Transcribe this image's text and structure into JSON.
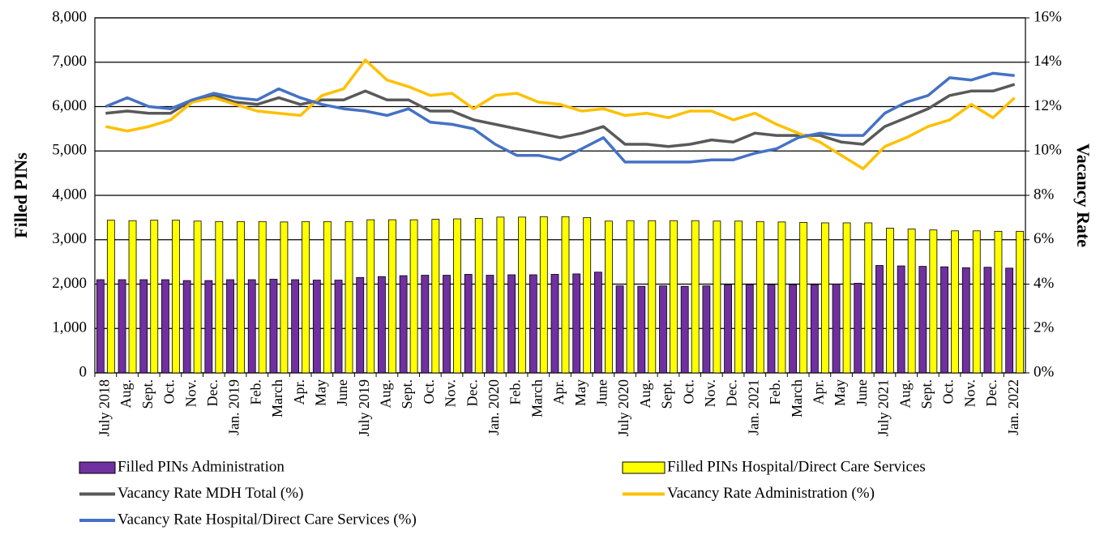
{
  "chart_data": {
    "type": "bar",
    "y_label": "Filled PINs",
    "y2_label": "Vacancy Rate",
    "categories": [
      "July 2018",
      "Aug.",
      "Sept.",
      "Oct.",
      "Nov.",
      "Dec.",
      "Jan. 2019",
      "Feb.",
      "March",
      "Apr.",
      "May",
      "June",
      "July 2019",
      "Aug.",
      "Sept.",
      "Oct.",
      "Nov.",
      "Dec.",
      "Jan. 2020",
      "Feb.",
      "March",
      "Apr.",
      "May",
      "June",
      "July 2020",
      "Aug.",
      "Sept.",
      "Oct.",
      "Nov.",
      "Dec.",
      "Jan. 2021",
      "Feb.",
      "March",
      "Apr.",
      "May",
      "June",
      "July 2021",
      "Aug.",
      "Sept.",
      "Oct.",
      "Nov.",
      "Dec.",
      "Jan. 2022"
    ],
    "series": [
      {
        "name": "Filled PINs Administration",
        "type": "bar",
        "color": "#7030a0",
        "values": [
          2100,
          2100,
          2100,
          2100,
          2080,
          2080,
          2100,
          2100,
          2110,
          2100,
          2090,
          2090,
          2150,
          2170,
          2190,
          2200,
          2200,
          2220,
          2200,
          2210,
          2210,
          2220,
          2230,
          2270,
          1960,
          1950,
          1960,
          1950,
          1960,
          1980,
          1990,
          1990,
          1990,
          1990,
          2000,
          2020,
          2420,
          2410,
          2400,
          2390,
          2370,
          2380,
          2360
        ]
      },
      {
        "name": "Filled PINs Hospital/Direct Care Services",
        "type": "bar",
        "color": "#ffff00",
        "values": [
          3440,
          3430,
          3440,
          3440,
          3420,
          3410,
          3410,
          3410,
          3400,
          3410,
          3410,
          3410,
          3450,
          3450,
          3450,
          3460,
          3470,
          3480,
          3510,
          3510,
          3520,
          3520,
          3500,
          3420,
          3430,
          3430,
          3430,
          3430,
          3420,
          3420,
          3410,
          3400,
          3390,
          3380,
          3380,
          3380,
          3260,
          3240,
          3220,
          3200,
          3200,
          3190,
          3190
        ]
      },
      {
        "name": "Vacancy Rate MDH Total (%)",
        "type": "line",
        "axis": "y2",
        "color": "#595959",
        "values": [
          11.7,
          11.8,
          11.7,
          11.7,
          12.3,
          12.5,
          12.2,
          12.1,
          12.4,
          12.1,
          12.3,
          12.3,
          12.7,
          12.3,
          12.3,
          11.8,
          11.8,
          11.4,
          11.2,
          11.0,
          10.8,
          10.6,
          10.8,
          11.1,
          10.3,
          10.3,
          10.2,
          10.3,
          10.5,
          10.4,
          10.8,
          10.7,
          10.7,
          10.7,
          10.4,
          10.3,
          11.1,
          11.5,
          11.9,
          12.5,
          12.7,
          12.7,
          13.0
        ]
      },
      {
        "name": "Vacancy Rate Administration (%)",
        "type": "line",
        "axis": "y2",
        "color": "#ffc000",
        "values": [
          11.1,
          10.9,
          11.1,
          11.4,
          12.2,
          12.4,
          12.1,
          11.8,
          11.7,
          11.6,
          12.5,
          12.8,
          14.1,
          13.2,
          12.9,
          12.5,
          12.6,
          11.9,
          12.5,
          12.6,
          12.2,
          12.1,
          11.8,
          11.9,
          11.6,
          11.7,
          11.5,
          11.8,
          11.8,
          11.4,
          11.7,
          11.2,
          10.8,
          10.4,
          9.8,
          9.2,
          10.2,
          10.6,
          11.1,
          11.4,
          12.1,
          11.5,
          12.4
        ]
      },
      {
        "name": "Vacancy Rate Hospital/Direct Care Services (%)",
        "type": "line",
        "axis": "y2",
        "color": "#4472c4",
        "values": [
          12.0,
          12.4,
          12.0,
          11.9,
          12.3,
          12.6,
          12.4,
          12.3,
          12.8,
          12.4,
          12.1,
          11.9,
          11.8,
          11.6,
          11.9,
          11.3,
          11.2,
          11.0,
          10.3,
          9.8,
          9.8,
          9.6,
          10.1,
          10.6,
          9.5,
          9.5,
          9.5,
          9.5,
          9.6,
          9.6,
          9.9,
          10.1,
          10.6,
          10.8,
          10.7,
          10.7,
          11.7,
          12.2,
          12.5,
          13.3,
          13.2,
          13.5,
          13.4
        ]
      }
    ],
    "ylim": [
      0,
      8000
    ],
    "yticks": [
      0,
      {
        "value": 1000,
        "label": "1,000"
      },
      {
        "value": 2000,
        "label": "2,000"
      },
      {
        "value": 3000,
        "label": "3,000"
      },
      {
        "value": 4000,
        "label": "4,000"
      },
      {
        "value": 5000,
        "label": "5,000"
      },
      {
        "value": 6000,
        "label": "6,000"
      },
      {
        "value": 7000,
        "label": "7,000"
      },
      {
        "value": 8000,
        "label": "8,000"
      }
    ],
    "y2lim": [
      0,
      16
    ],
    "y2ticks": [
      {
        "value": 0,
        "label": "0%"
      },
      {
        "value": 2,
        "label": "2%"
      },
      {
        "value": 4,
        "label": "4%"
      },
      {
        "value": 6,
        "label": "6%"
      },
      {
        "value": 8,
        "label": "8%"
      },
      {
        "value": 10,
        "label": "10%"
      },
      {
        "value": 12,
        "label": "12%"
      },
      {
        "value": 14,
        "label": "14%"
      },
      {
        "value": 16,
        "label": "16%"
      }
    ],
    "grid": true,
    "legend": "bottom"
  }
}
